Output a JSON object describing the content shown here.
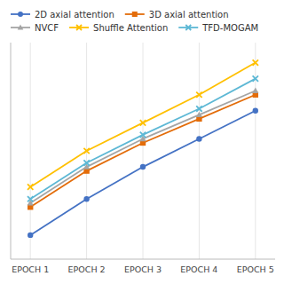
{
  "chart_data": {
    "type": "line",
    "x": [
      1,
      2,
      3,
      4,
      5
    ],
    "xlim": [
      0.65,
      5.35
    ],
    "xticks": [
      {
        "value": 1,
        "label": "EPOCH 1"
      },
      {
        "value": 2,
        "label": "EPOCH 2"
      },
      {
        "value": 3,
        "label": "EPOCH 3"
      },
      {
        "value": 4,
        "label": "EPOCH 4"
      },
      {
        "value": 5,
        "label": "EPOCH 5"
      }
    ],
    "ylim": [
      0.0,
      1.08
    ],
    "grid": true,
    "legend": "top-left",
    "tick_labels": "x",
    "series": [
      {
        "name": "2D axial attention",
        "color": "#4472C4",
        "marker": "circle",
        "values": [
          0.12,
          0.3,
          0.46,
          0.6,
          0.74
        ]
      },
      {
        "name": "3D axial attention",
        "color": "#E36C09",
        "marker": "square",
        "values": [
          0.26,
          0.44,
          0.58,
          0.7,
          0.82
        ]
      },
      {
        "name": "NVCF",
        "color": "#A5A5A5",
        "marker": "triangle",
        "values": [
          0.28,
          0.46,
          0.6,
          0.72,
          0.84
        ]
      },
      {
        "name": "Shuffle Attention",
        "color": "#FFC000",
        "marker": "x",
        "values": [
          0.36,
          0.54,
          0.68,
          0.82,
          0.98
        ]
      },
      {
        "name": "TFD-MOGAM",
        "color": "#5DB8D5",
        "marker": "x",
        "values": [
          0.3,
          0.48,
          0.62,
          0.75,
          0.9
        ]
      }
    ]
  }
}
